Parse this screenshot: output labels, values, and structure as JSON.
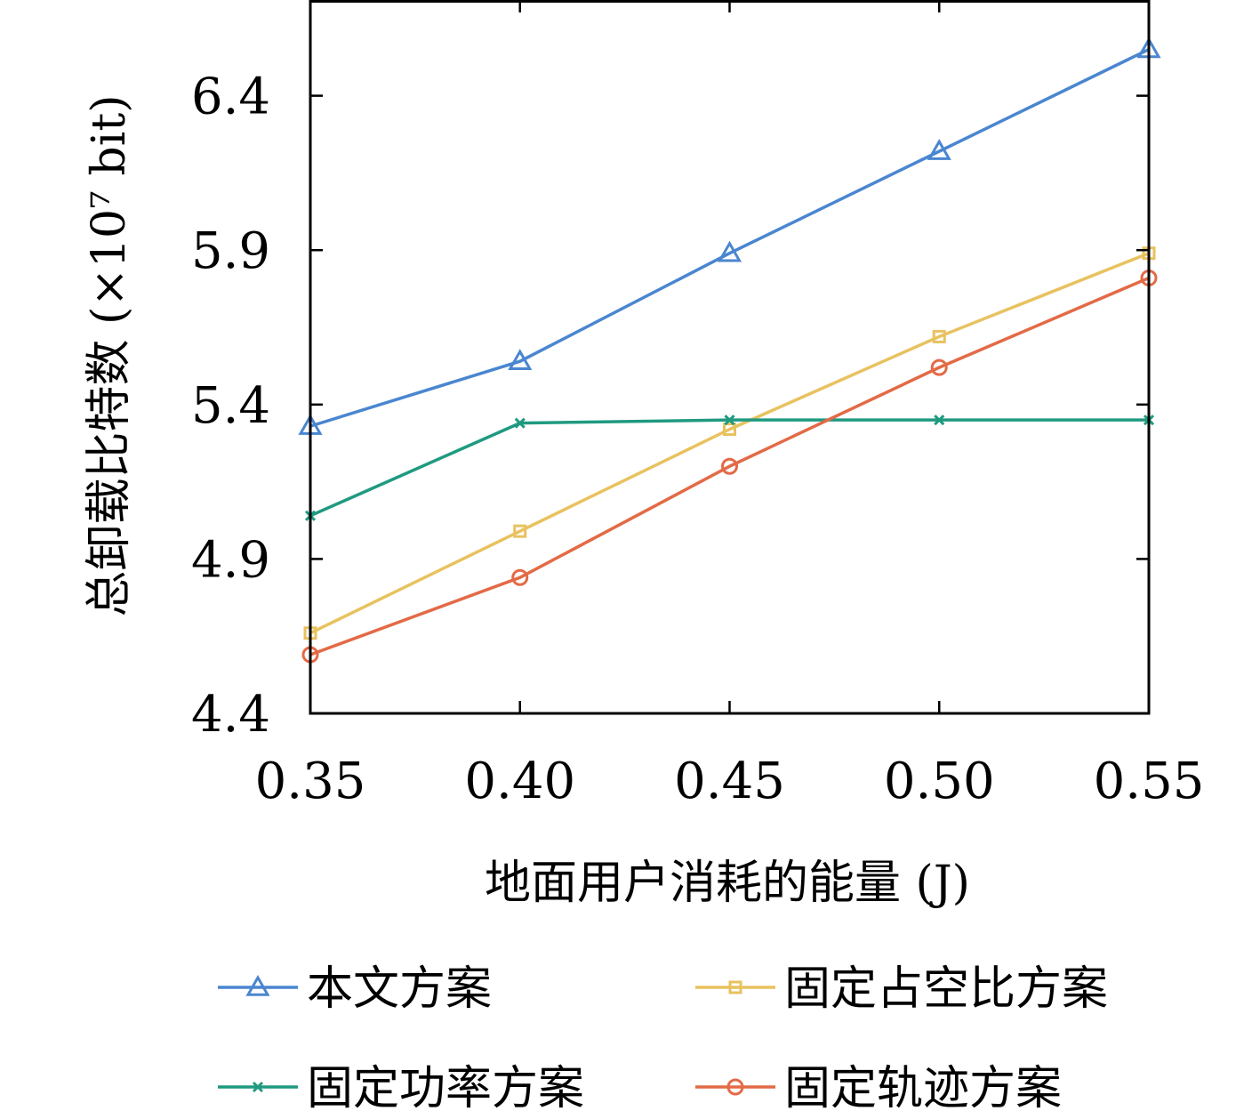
{
  "chart_data": {
    "type": "line",
    "xlabel": "地面用户消耗的能量 (J)",
    "ylabel": "总卸载比特数 (×10⁷ bit)",
    "x": [
      0.35,
      0.4,
      0.45,
      0.5,
      0.55
    ],
    "x_tick_labels": [
      "0.35",
      "0.40",
      "0.45",
      "0.50",
      "0.55"
    ],
    "y_ticks": [
      4.4,
      4.9,
      5.4,
      5.9,
      6.4
    ],
    "y_tick_labels": [
      "4.4",
      "4.9",
      "5.4",
      "5.9",
      "6.4"
    ],
    "xlim": [
      0.35,
      0.55
    ],
    "ylim": [
      4.4,
      6.71
    ],
    "grid": false,
    "legend_position": "bottom",
    "series": [
      {
        "name": "本文方案",
        "color": "#4a86d0",
        "marker": "triangle",
        "values": [
          5.33,
          5.54,
          5.89,
          6.22,
          6.55
        ]
      },
      {
        "name": "固定占空比方案",
        "color": "#e8c25f",
        "marker": "square",
        "values": [
          4.66,
          4.99,
          5.32,
          5.62,
          5.89
        ]
      },
      {
        "name": "固定功率方案",
        "color": "#1f9a80",
        "marker": "x",
        "values": [
          5.04,
          5.34,
          5.35,
          5.35,
          5.35
        ]
      },
      {
        "name": "固定轨迹方案",
        "color": "#e36a46",
        "marker": "circle",
        "values": [
          4.59,
          4.84,
          5.2,
          5.52,
          5.81
        ]
      }
    ]
  }
}
